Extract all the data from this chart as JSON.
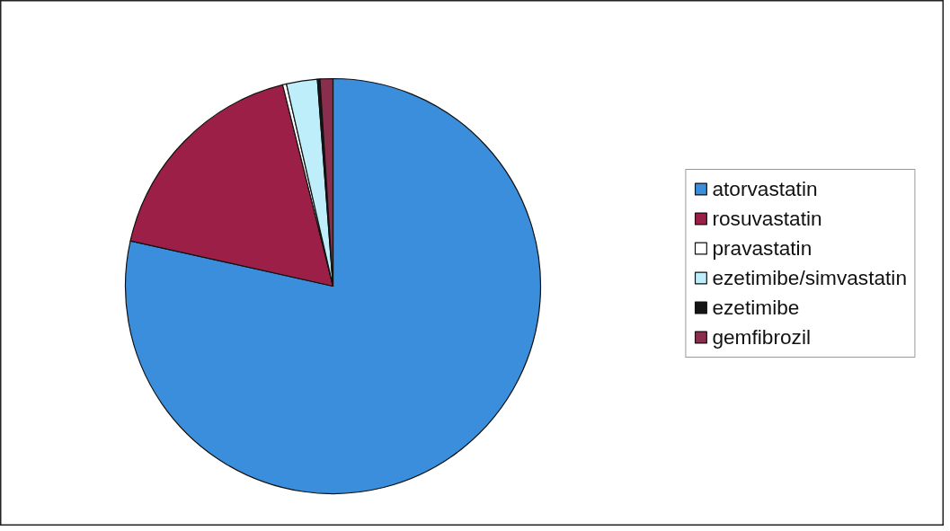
{
  "chart_data": {
    "type": "pie",
    "categories": [
      "atorvastatin",
      "rosuvastatin",
      "pravastatin",
      "ezetimibe/simvastatin",
      "ezetimibe",
      "gemfibrozil"
    ],
    "values": [
      78.5,
      17.6,
      0.3,
      2.4,
      0.2,
      1.0
    ],
    "colors": [
      "#3a8edc",
      "#9c1f48",
      "#ffffff",
      "#bdeefa",
      "#151515",
      "#8a2e4e"
    ],
    "legend": "right"
  }
}
